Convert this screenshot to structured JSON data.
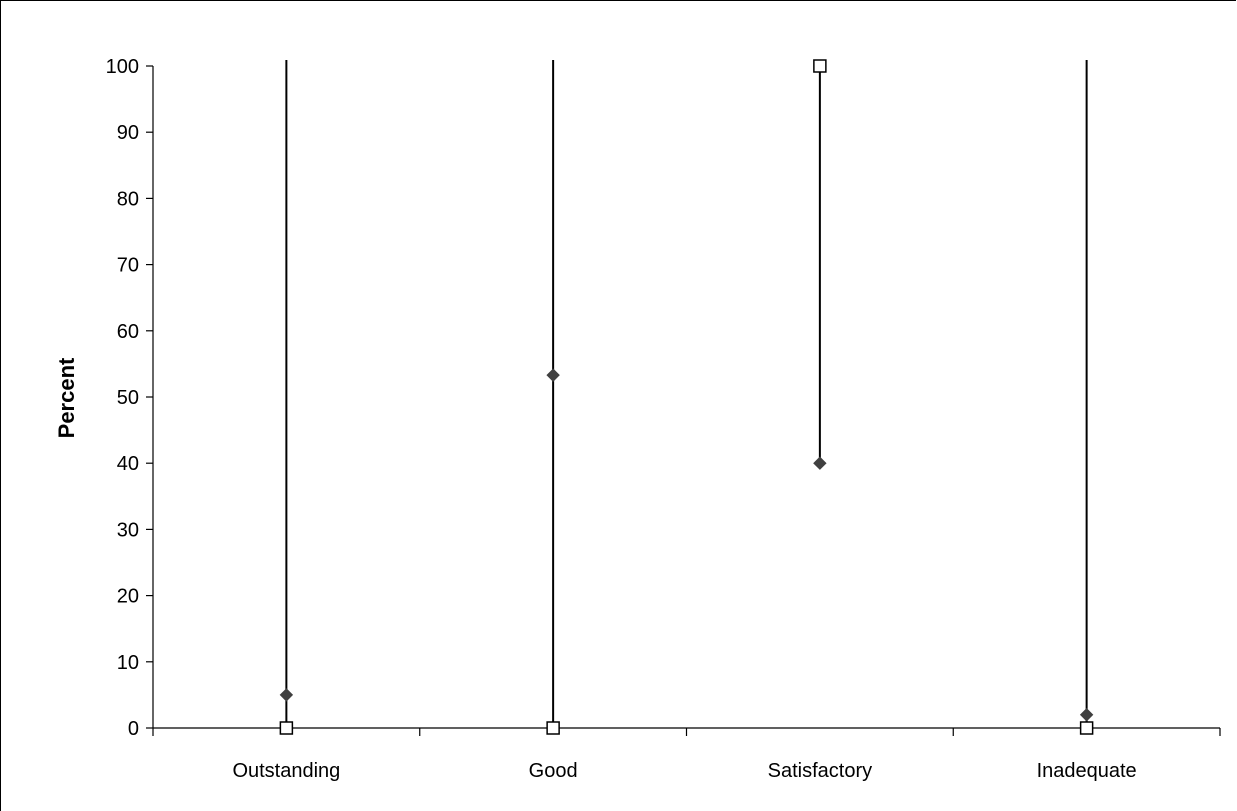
{
  "chart_data": {
    "type": "scatter",
    "categories": [
      "Outstanding",
      "Good",
      "Satisfactory",
      "Inadequate"
    ],
    "series": [
      {
        "values": [
          5,
          53.3,
          40,
          2
        ],
        "marker": "diamond",
        "color": "#404040"
      },
      {
        "values": [
          0,
          0,
          100,
          0
        ],
        "marker": "square-open",
        "color": "#000000"
      }
    ],
    "ylabel": "Percent",
    "xlabel": "",
    "title": "",
    "ylim": [
      0,
      100
    ],
    "yticks": [
      0,
      10,
      20,
      30,
      40,
      50,
      60,
      70,
      80,
      90,
      100
    ],
    "high_low_lines": true,
    "grid": false,
    "legend": "none"
  }
}
